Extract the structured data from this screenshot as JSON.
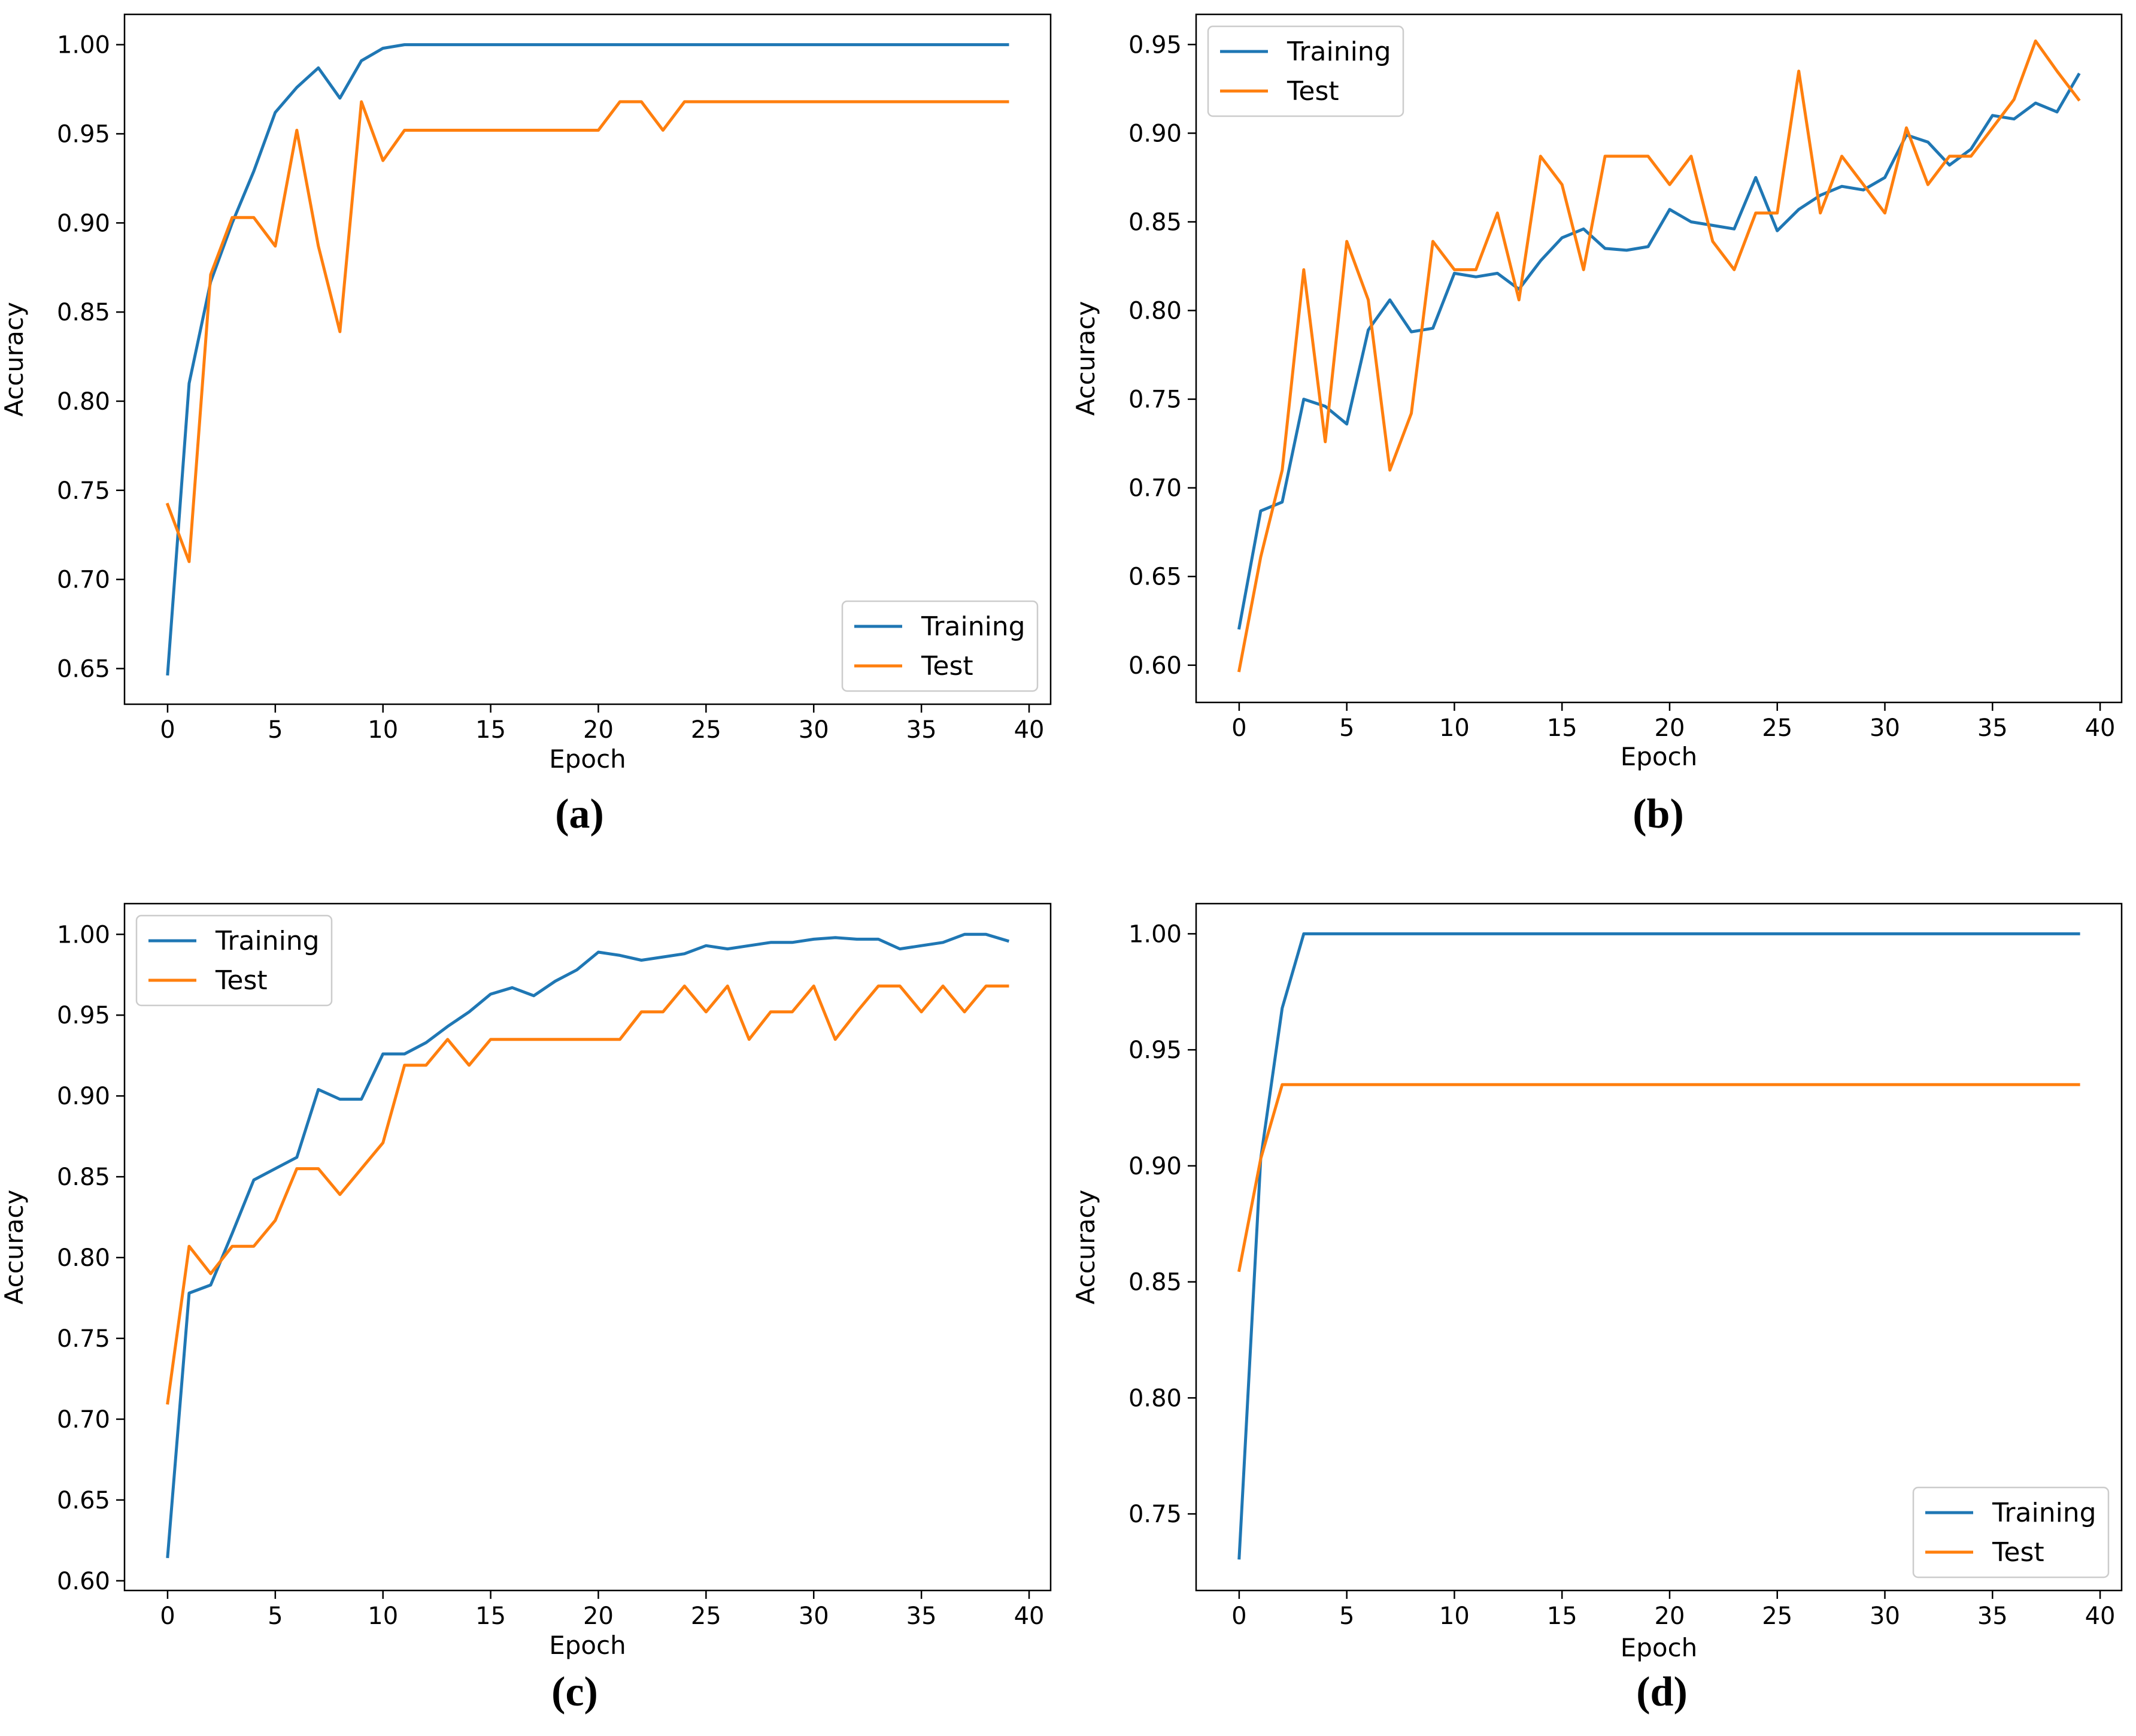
{
  "chart_data": [
    {
      "type": "line",
      "panel_label": "(a)",
      "xlabel": "Epoch",
      "ylabel": "Accuracy",
      "xlim": [
        -2,
        41
      ],
      "ylim": [
        0.63,
        1.017
      ],
      "xticks": [
        0,
        5,
        10,
        15,
        20,
        25,
        30,
        35,
        40
      ],
      "yticks": [
        0.65,
        0.7,
        0.75,
        0.8,
        0.85,
        0.9,
        0.95,
        1.0
      ],
      "legend_position": "lower-right",
      "grid": false,
      "x": [
        0,
        1,
        2,
        3,
        4,
        5,
        6,
        7,
        8,
        9,
        10,
        11,
        12,
        13,
        14,
        15,
        16,
        17,
        18,
        19,
        20,
        21,
        22,
        23,
        24,
        25,
        26,
        27,
        28,
        29,
        30,
        31,
        32,
        33,
        34,
        35,
        36,
        37,
        38,
        39
      ],
      "series": [
        {
          "name": "Training",
          "color": "#1f77b4",
          "values": [
            0.647,
            0.81,
            0.867,
            0.9,
            0.929,
            0.962,
            0.976,
            0.987,
            0.97,
            0.991,
            0.998,
            1.0,
            1.0,
            1.0,
            1.0,
            1.0,
            1.0,
            1.0,
            1.0,
            1.0,
            1.0,
            1.0,
            1.0,
            1.0,
            1.0,
            1.0,
            1.0,
            1.0,
            1.0,
            1.0,
            1.0,
            1.0,
            1.0,
            1.0,
            1.0,
            1.0,
            1.0,
            1.0,
            1.0,
            1.0
          ]
        },
        {
          "name": "Test",
          "color": "#ff7f0e",
          "values": [
            0.742,
            0.71,
            0.871,
            0.903,
            0.903,
            0.887,
            0.952,
            0.887,
            0.839,
            0.968,
            0.935,
            0.952,
            0.952,
            0.952,
            0.952,
            0.952,
            0.952,
            0.952,
            0.952,
            0.952,
            0.952,
            0.968,
            0.968,
            0.952,
            0.968,
            0.968,
            0.968,
            0.968,
            0.968,
            0.968,
            0.968,
            0.968,
            0.968,
            0.968,
            0.968,
            0.968,
            0.968,
            0.968,
            0.968,
            0.968
          ]
        }
      ]
    },
    {
      "type": "line",
      "panel_label": "(b)",
      "xlabel": "Epoch",
      "ylabel": "Accuracy",
      "xlim": [
        -2,
        41
      ],
      "ylim": [
        0.579,
        0.967
      ],
      "xticks": [
        0,
        5,
        10,
        15,
        20,
        25,
        30,
        35,
        40
      ],
      "yticks": [
        0.6,
        0.65,
        0.7,
        0.75,
        0.8,
        0.85,
        0.9,
        0.95
      ],
      "legend_position": "upper-left",
      "grid": false,
      "x": [
        0,
        1,
        2,
        3,
        4,
        5,
        6,
        7,
        8,
        9,
        10,
        11,
        12,
        13,
        14,
        15,
        16,
        17,
        18,
        19,
        20,
        21,
        22,
        23,
        24,
        25,
        26,
        27,
        28,
        29,
        30,
        31,
        32,
        33,
        34,
        35,
        36,
        37,
        38,
        39
      ],
      "series": [
        {
          "name": "Training",
          "color": "#1f77b4",
          "values": [
            0.621,
            0.687,
            0.692,
            0.75,
            0.746,
            0.736,
            0.789,
            0.806,
            0.788,
            0.79,
            0.821,
            0.819,
            0.821,
            0.812,
            0.828,
            0.841,
            0.846,
            0.835,
            0.834,
            0.836,
            0.857,
            0.85,
            0.848,
            0.846,
            0.875,
            0.845,
            0.857,
            0.865,
            0.87,
            0.868,
            0.875,
            0.899,
            0.895,
            0.882,
            0.891,
            0.91,
            0.908,
            0.917,
            0.912,
            0.933
          ]
        },
        {
          "name": "Test",
          "color": "#ff7f0e",
          "values": [
            0.597,
            0.661,
            0.71,
            0.823,
            0.726,
            0.839,
            0.806,
            0.71,
            0.742,
            0.839,
            0.823,
            0.823,
            0.855,
            0.806,
            0.887,
            0.871,
            0.823,
            0.887,
            0.887,
            0.887,
            0.871,
            0.887,
            0.839,
            0.823,
            0.855,
            0.855,
            0.935,
            0.855,
            0.887,
            0.871,
            0.855,
            0.903,
            0.871,
            0.887,
            0.887,
            0.903,
            0.919,
            0.952,
            0.935,
            0.919
          ]
        }
      ]
    },
    {
      "type": "line",
      "panel_label": "(c)",
      "xlabel": "Epoch",
      "ylabel": "Accuracy",
      "xlim": [
        -2,
        41
      ],
      "ylim": [
        0.594,
        1.019
      ],
      "xticks": [
        0,
        5,
        10,
        15,
        20,
        25,
        30,
        35,
        40
      ],
      "yticks": [
        0.6,
        0.65,
        0.7,
        0.75,
        0.8,
        0.85,
        0.9,
        0.95,
        1.0
      ],
      "legend_position": "upper-left",
      "grid": false,
      "x": [
        0,
        1,
        2,
        3,
        4,
        5,
        6,
        7,
        8,
        9,
        10,
        11,
        12,
        13,
        14,
        15,
        16,
        17,
        18,
        19,
        20,
        21,
        22,
        23,
        24,
        25,
        26,
        27,
        28,
        29,
        30,
        31,
        32,
        33,
        34,
        35,
        36,
        37,
        38,
        39
      ],
      "series": [
        {
          "name": "Training",
          "color": "#1f77b4",
          "values": [
            0.615,
            0.778,
            0.783,
            0.815,
            0.848,
            0.855,
            0.862,
            0.904,
            0.898,
            0.898,
            0.926,
            0.926,
            0.933,
            0.943,
            0.952,
            0.963,
            0.967,
            0.962,
            0.971,
            0.978,
            0.989,
            0.987,
            0.984,
            0.986,
            0.988,
            0.993,
            0.991,
            0.993,
            0.995,
            0.995,
            0.997,
            0.998,
            0.997,
            0.997,
            0.991,
            0.993,
            0.995,
            1.0,
            1.0,
            0.996
          ]
        },
        {
          "name": "Test",
          "color": "#ff7f0e",
          "values": [
            0.71,
            0.807,
            0.79,
            0.807,
            0.807,
            0.823,
            0.855,
            0.855,
            0.839,
            0.855,
            0.871,
            0.919,
            0.919,
            0.935,
            0.919,
            0.935,
            0.935,
            0.935,
            0.935,
            0.935,
            0.935,
            0.935,
            0.952,
            0.952,
            0.968,
            0.952,
            0.968,
            0.935,
            0.952,
            0.952,
            0.968,
            0.935,
            0.952,
            0.968,
            0.968,
            0.952,
            0.968,
            0.952,
            0.968,
            0.968
          ]
        }
      ]
    },
    {
      "type": "line",
      "panel_label": "(d)",
      "xlabel": "Epoch",
      "ylabel": "Accuracy",
      "xlim": [
        -2,
        41
      ],
      "ylim": [
        0.717,
        1.013
      ],
      "xticks": [
        0,
        5,
        10,
        15,
        20,
        25,
        30,
        35,
        40
      ],
      "yticks": [
        0.75,
        0.8,
        0.85,
        0.9,
        0.95,
        1.0
      ],
      "legend_position": "lower-right",
      "grid": false,
      "x": [
        0,
        1,
        2,
        3,
        4,
        5,
        6,
        7,
        8,
        9,
        10,
        11,
        12,
        13,
        14,
        15,
        16,
        17,
        18,
        19,
        20,
        21,
        22,
        23,
        24,
        25,
        26,
        27,
        28,
        29,
        30,
        31,
        32,
        33,
        34,
        35,
        36,
        37,
        38,
        39
      ],
      "series": [
        {
          "name": "Training",
          "color": "#1f77b4",
          "values": [
            0.731,
            0.903,
            0.968,
            1.0,
            1.0,
            1.0,
            1.0,
            1.0,
            1.0,
            1.0,
            1.0,
            1.0,
            1.0,
            1.0,
            1.0,
            1.0,
            1.0,
            1.0,
            1.0,
            1.0,
            1.0,
            1.0,
            1.0,
            1.0,
            1.0,
            1.0,
            1.0,
            1.0,
            1.0,
            1.0,
            1.0,
            1.0,
            1.0,
            1.0,
            1.0,
            1.0,
            1.0,
            1.0,
            1.0,
            1.0
          ]
        },
        {
          "name": "Test",
          "color": "#ff7f0e",
          "values": [
            0.855,
            0.903,
            0.935,
            0.935,
            0.935,
            0.935,
            0.935,
            0.935,
            0.935,
            0.935,
            0.935,
            0.935,
            0.935,
            0.935,
            0.935,
            0.935,
            0.935,
            0.935,
            0.935,
            0.935,
            0.935,
            0.935,
            0.935,
            0.935,
            0.935,
            0.935,
            0.935,
            0.935,
            0.935,
            0.935,
            0.935,
            0.935,
            0.935,
            0.935,
            0.935,
            0.935,
            0.935,
            0.935,
            0.935,
            0.935
          ]
        }
      ]
    }
  ]
}
